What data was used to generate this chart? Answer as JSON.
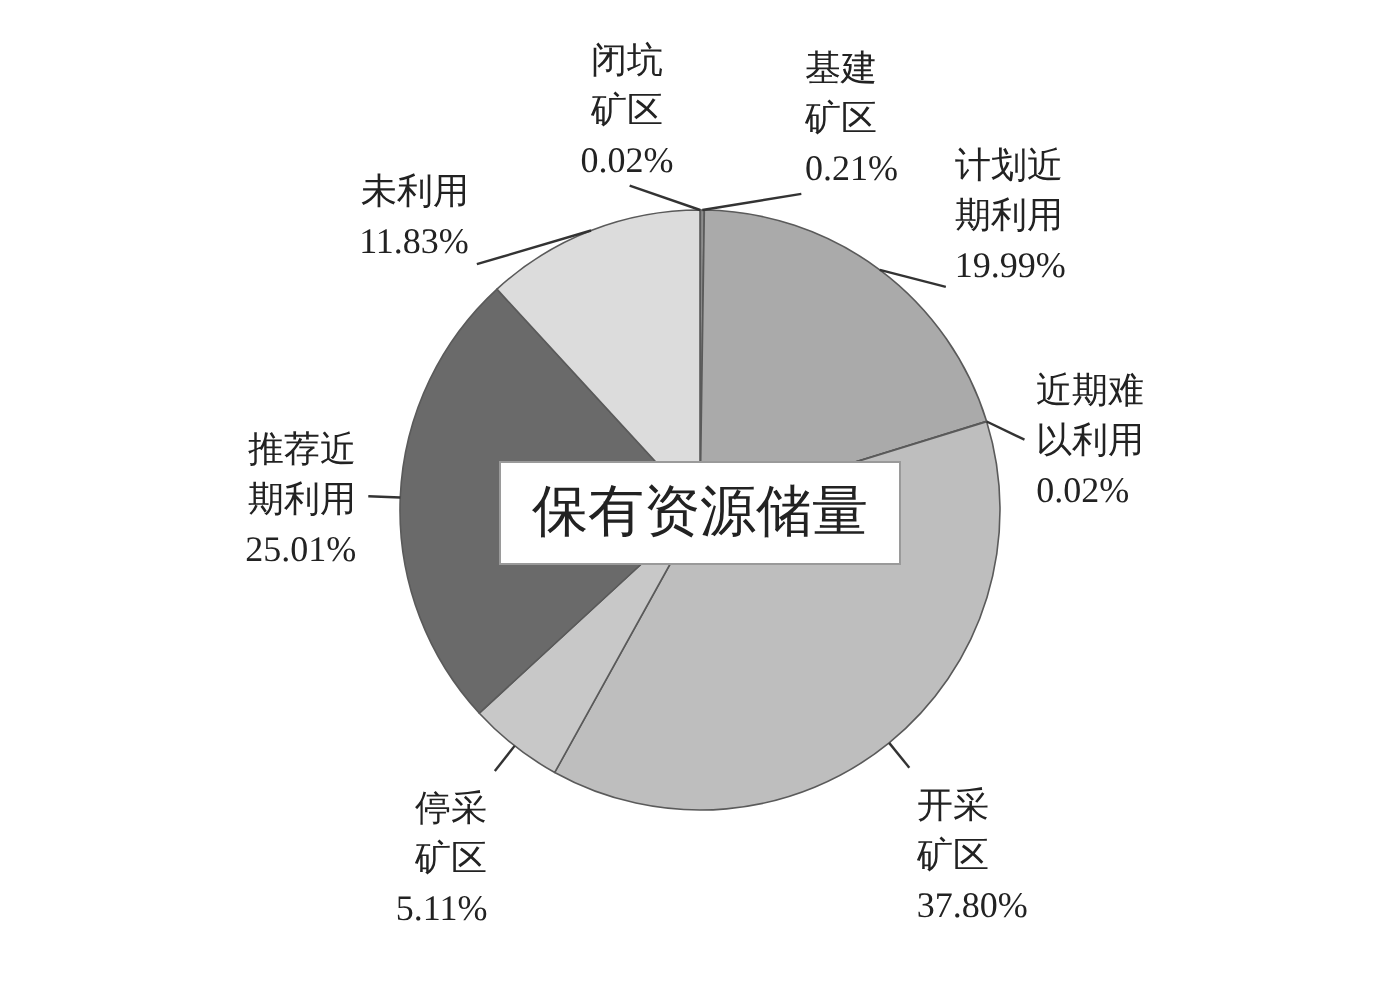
{
  "chart_data": {
    "type": "pie",
    "title": "保有资源储量",
    "categories": [
      "闭坑矿区",
      "基建矿区",
      "计划近期利用",
      "近期难以利用",
      "开采矿区",
      "停采矿区",
      "推荐近期利用",
      "未利用"
    ],
    "values": [
      0.02,
      0.21,
      19.99,
      0.02,
      37.8,
      5.11,
      25.01,
      11.83
    ],
    "value_labels": [
      "0.02%",
      "0.21%",
      "19.99%",
      "0.02%",
      "37.80%",
      "5.11%",
      "25.01%",
      "11.83%"
    ],
    "colors": [
      "#808080",
      "#8c8c8c",
      "#aaaaaa",
      "#808080",
      "#bebebe",
      "#c8c8c8",
      "#6a6a6a",
      "#dcdcdc"
    ]
  }
}
